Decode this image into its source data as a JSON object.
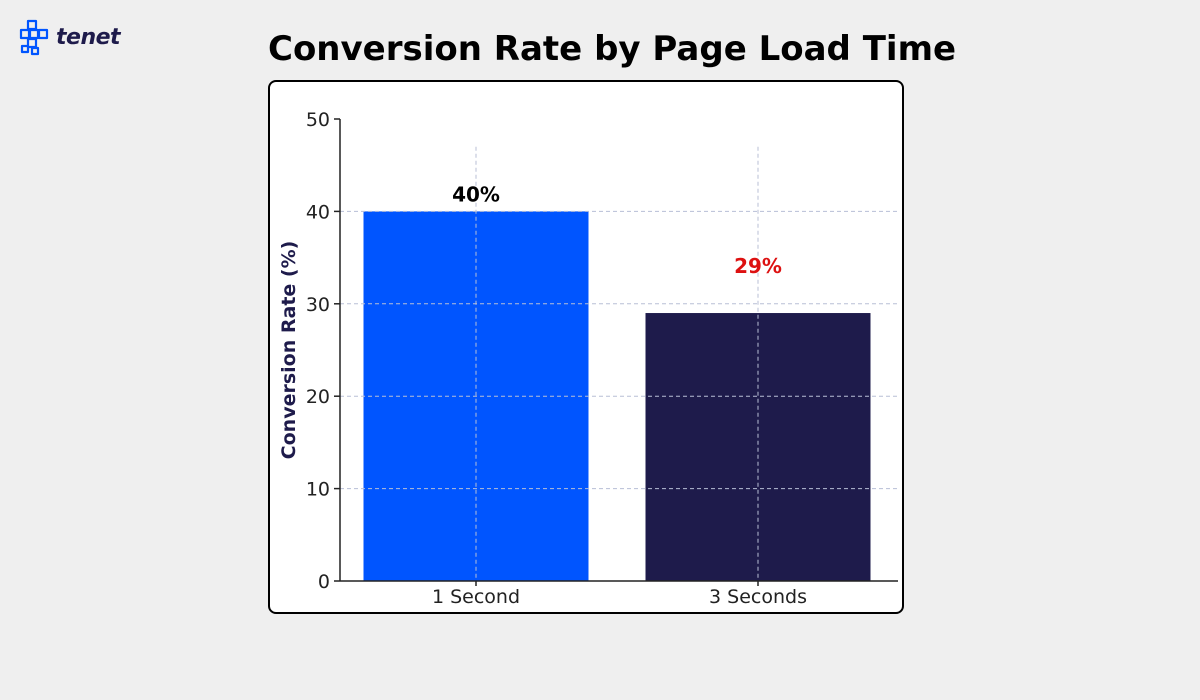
{
  "brand": {
    "name": "tenet",
    "color": "#1e1b4b",
    "accent": "#0055ff",
    "icon": "tenet-logo-icon"
  },
  "chart_data": {
    "type": "bar",
    "title": "Conversion Rate by Page Load Time",
    "xlabel": "",
    "ylabel": "Conversion Rate (%)",
    "categories": [
      "1 Second",
      "3 Seconds"
    ],
    "values": [
      40,
      29
    ],
    "data_labels": [
      "40%",
      "29%"
    ],
    "bar_colors": [
      "#0055ff",
      "#1e1b4b"
    ],
    "data_label_colors": [
      "#000000",
      "#dd1111"
    ],
    "ylim": [
      0,
      50
    ],
    "yticks": [
      0,
      10,
      20,
      30,
      40,
      50
    ],
    "grid": true,
    "legend": "none"
  }
}
